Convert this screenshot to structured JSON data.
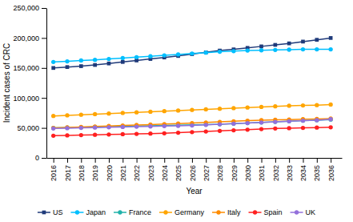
{
  "chart_data": {
    "type": "line",
    "xlabel": "Year",
    "ylabel": "Incident cases of CRC",
    "x": [
      2016,
      2017,
      2018,
      2019,
      2020,
      2021,
      2022,
      2023,
      2024,
      2025,
      2026,
      2027,
      2028,
      2029,
      2030,
      2031,
      2032,
      2033,
      2034,
      2035,
      2036
    ],
    "series": [
      {
        "name": "US",
        "color": "#1F3A7A",
        "marker": "square",
        "values": [
          150000,
          151500,
          153000,
          155000,
          157500,
          160000,
          162500,
          165000,
          167500,
          170000,
          173000,
          176000,
          179000,
          181000,
          183500,
          186000,
          188500,
          191000,
          194000,
          197000,
          200000
        ]
      },
      {
        "name": "Japan",
        "color": "#00BFFF",
        "marker": "circle",
        "values": [
          160000,
          161000,
          162500,
          163500,
          165000,
          166500,
          168000,
          169500,
          171000,
          172500,
          174000,
          175500,
          177000,
          178000,
          179000,
          179500,
          180000,
          180500,
          181000,
          181000,
          181000
        ]
      },
      {
        "name": "France",
        "color": "#20B2AA",
        "marker": "circle",
        "values": [
          50000,
          50500,
          51000,
          51500,
          52000,
          52500,
          53000,
          53500,
          54000,
          54500,
          55000,
          55500,
          56000,
          57000,
          58000,
          59000,
          60000,
          61000,
          62000,
          63000,
          64000
        ]
      },
      {
        "name": "Germany",
        "color": "#FFA500",
        "marker": "circle",
        "values": [
          70000,
          71000,
          72000,
          73000,
          74000,
          75000,
          76000,
          77000,
          78000,
          79000,
          80000,
          81000,
          82000,
          83000,
          84000,
          85000,
          86000,
          87000,
          87500,
          88000,
          89000
        ]
      },
      {
        "name": "Italy",
        "color": "#FF8C00",
        "marker": "circle",
        "values": [
          50000,
          50800,
          51600,
          52400,
          53200,
          54000,
          54800,
          55600,
          56400,
          57200,
          58000,
          59000,
          60000,
          61000,
          62000,
          63000,
          63500,
          64000,
          64500,
          65000,
          65500
        ]
      },
      {
        "name": "Spain",
        "color": "#FF2020",
        "marker": "circle",
        "values": [
          37000,
          37500,
          38000,
          38500,
          39000,
          39500,
          40000,
          40500,
          41000,
          42000,
          43000,
          44000,
          45000,
          46000,
          47000,
          48000,
          49000,
          49500,
          50000,
          50500,
          51000
        ]
      },
      {
        "name": "UK",
        "color": "#9370DB",
        "marker": "circle",
        "values": [
          49000,
          49500,
          50000,
          50500,
          51000,
          51500,
          52000,
          52500,
          53000,
          53500,
          54000,
          55000,
          56000,
          57000,
          58000,
          59000,
          60000,
          61000,
          62000,
          63000,
          64500
        ]
      }
    ],
    "xlim": [
      2015.5,
      2036.8
    ],
    "xticks": [
      2016,
      2017,
      2018,
      2019,
      2020,
      2021,
      2022,
      2023,
      2024,
      2025,
      2026,
      2027,
      2028,
      2029,
      2030,
      2031,
      2032,
      2033,
      2034,
      2035,
      2036
    ],
    "ylim": [
      0,
      250000
    ],
    "yticks": [
      0,
      {
        "value": 50000,
        "label": "50,000"
      },
      {
        "value": 100000,
        "label": "100,000"
      },
      {
        "value": 150000,
        "label": "150,000"
      },
      {
        "value": 200000,
        "label": "200,000"
      },
      {
        "value": 250000,
        "label": "250,000"
      }
    ],
    "grid": false,
    "legend": "bottom"
  }
}
